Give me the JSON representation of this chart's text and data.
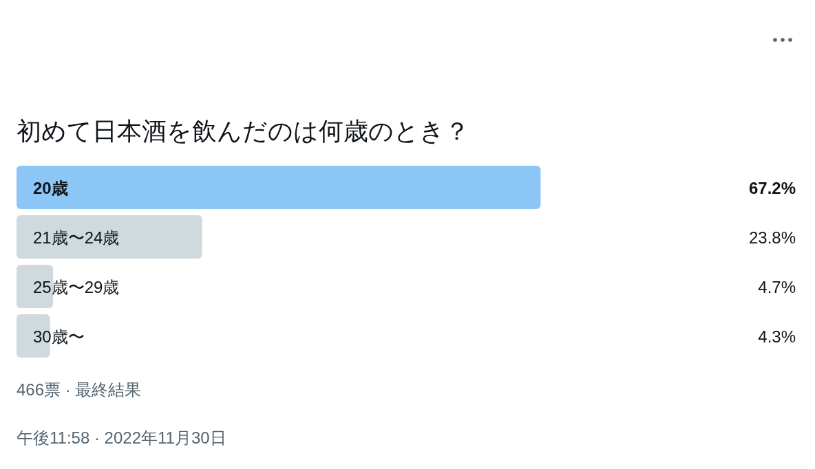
{
  "chart_data": {
    "type": "bar",
    "orientation": "horizontal",
    "title": "初めて日本酒を飲んだのは何歳のとき？",
    "categories": [
      "20歳",
      "21歳〜24歳",
      "25歳〜29歳",
      "30歳〜"
    ],
    "values": [
      67.2,
      23.8,
      4.7,
      4.3
    ],
    "value_labels": [
      "67.2%",
      "23.8%",
      "4.7%",
      "4.3%"
    ],
    "colors": [
      "#8cc6f6",
      "#cfd9de",
      "#cfd9de",
      "#cfd9de"
    ],
    "annotations": [
      "466票 · 最終結果",
      "午後11:58 · 2022年11月30日"
    ]
  }
}
